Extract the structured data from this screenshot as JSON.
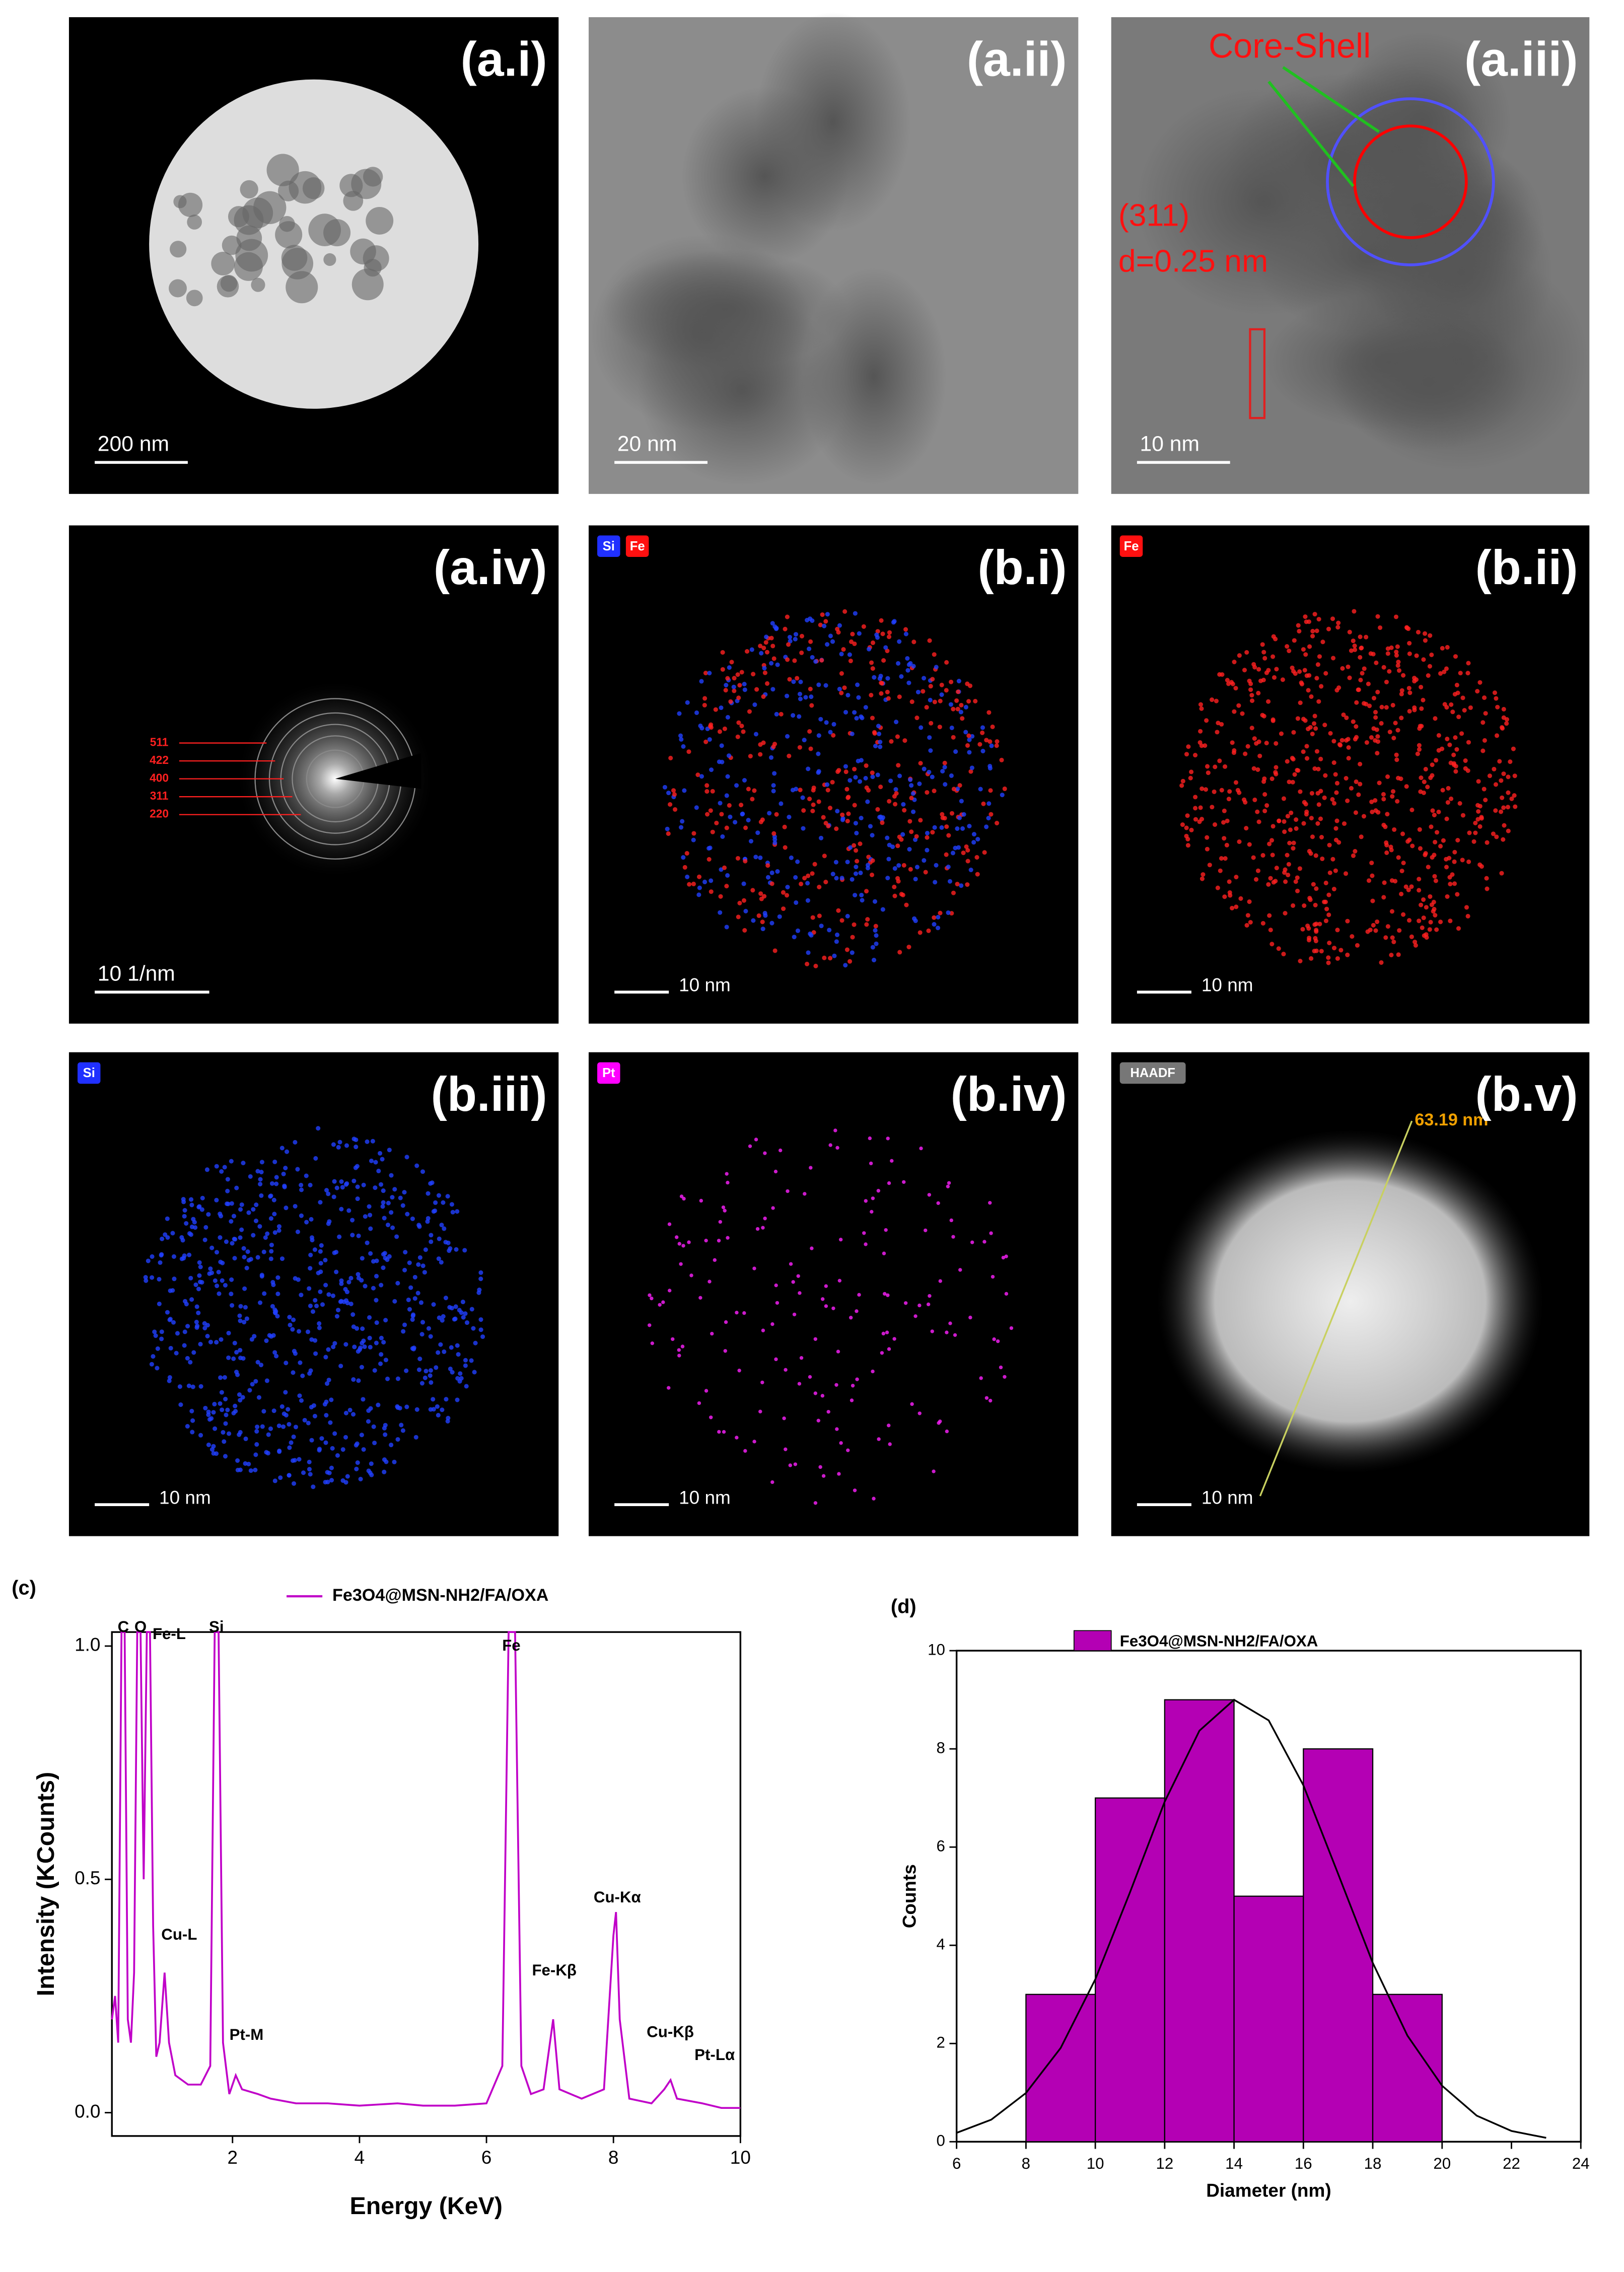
{
  "panels": [
    {
      "label": "(a.i)",
      "scale_bar": "200 nm"
    },
    {
      "label": "(a.ii)",
      "scale_bar": "20 nm"
    },
    {
      "label": "(a.iii)",
      "scale_bar": "10 nm",
      "annotations": [
        "Core-Shell",
        "(311)",
        "d=0.25 nm"
      ]
    },
    {
      "label": "(a.iv)",
      "scale_bar": "10 1/nm",
      "rings": [
        "511",
        "422",
        "400",
        "311",
        "220"
      ]
    },
    {
      "label": "(b.i)",
      "scale_bar": "10 nm",
      "tags": [
        "Si",
        "Fe"
      ]
    },
    {
      "label": "(b.ii)",
      "scale_bar": "10 nm",
      "tags": [
        "Fe"
      ]
    },
    {
      "label": "(b.iii)",
      "scale_bar": "10 nm",
      "tags": [
        "Si"
      ]
    },
    {
      "label": "(b.iv)",
      "scale_bar": "10 nm",
      "tags": [
        "Pt"
      ]
    },
    {
      "label": "(b.v)",
      "scale_bar": "10 nm",
      "tags": [
        "HAADF"
      ],
      "annotations": [
        "63.19 nm"
      ]
    }
  ],
  "chart_data": [
    {
      "type": "line",
      "panel_label": "(c)",
      "x_label": "Energy (KeV)",
      "y_label": "Intensity (KCounts)",
      "x": [
        0.1,
        0.15,
        0.2,
        0.25,
        0.3,
        0.35,
        0.4,
        0.45,
        0.5,
        0.55,
        0.6,
        0.65,
        0.7,
        0.75,
        0.8,
        0.85,
        0.93,
        1.0,
        1.1,
        1.3,
        1.5,
        1.65,
        1.72,
        1.78,
        1.85,
        1.95,
        2.05,
        2.15,
        2.4,
        2.6,
        3,
        3.5,
        4,
        4.6,
        5,
        5.5,
        6,
        6.25,
        6.35,
        6.45,
        6.55,
        6.7,
        6.9,
        7.05,
        7.15,
        7.5,
        7.85,
        8.0,
        8.04,
        8.1,
        8.25,
        8.6,
        8.8,
        8.9,
        9.0,
        9.4,
        9.7,
        10
      ],
      "series": [
        {
          "name": "Fe3O4@MSN-NH2/FA/OXA",
          "color": "#c000c8",
          "values": [
            0.2,
            0.25,
            0.15,
            1.03,
            1.03,
            0.2,
            0.15,
            0.3,
            1.03,
            1.03,
            0.5,
            1.03,
            1.03,
            0.4,
            0.12,
            0.15,
            0.3,
            0.15,
            0.08,
            0.06,
            0.06,
            0.1,
            1.03,
            1.03,
            0.15,
            0.04,
            0.08,
            0.05,
            0.04,
            0.03,
            0.02,
            0.02,
            0.015,
            0.02,
            0.015,
            0.015,
            0.02,
            0.1,
            1.03,
            1.03,
            0.1,
            0.04,
            0.05,
            0.2,
            0.05,
            0.03,
            0.05,
            0.38,
            0.43,
            0.2,
            0.03,
            0.02,
            0.05,
            0.07,
            0.03,
            0.02,
            0.01,
            0.01
          ]
        }
      ],
      "peak_labels": [
        "C",
        "O",
        "Fe-L",
        "Si",
        "Fe",
        "Cu-L",
        "Pt-M",
        "Fe-Kβ",
        "Cu-Kα",
        "Cu-Kβ",
        "Pt-Lα"
      ],
      "xlim": [
        0.1,
        10
      ],
      "xticks": [
        2,
        4,
        6,
        8,
        10
      ],
      "ylim": [
        -0.05,
        1.03
      ],
      "yticks": [
        {
          "value": 0,
          "label": "0.0"
        },
        {
          "value": 0.5,
          "label": "0.5"
        },
        {
          "value": 1,
          "label": "1.0"
        }
      ]
    },
    {
      "type": "histogram",
      "panel_label": "(d)",
      "x_label": "Diameter (nm)",
      "y_label": "Counts",
      "bins": [
        8,
        10,
        12,
        14,
        16,
        18,
        20
      ],
      "series": [
        {
          "name": "Fe3O4@MSN-NH2/FA/OXA",
          "color": "#b400b4",
          "values": [
            3,
            7,
            9,
            5,
            8,
            3
          ]
        }
      ],
      "fit": {
        "color": "#000000",
        "x": [
          6,
          7,
          8,
          9,
          10,
          11,
          12,
          13,
          14,
          15,
          16,
          17,
          18,
          19,
          20,
          21,
          22,
          23
        ],
        "values": [
          0.18,
          0.45,
          0.99,
          1.91,
          3.31,
          5.08,
          6.92,
          8.37,
          9.0,
          8.58,
          7.26,
          5.46,
          3.64,
          2.16,
          1.14,
          0.53,
          0.22,
          0.08
        ]
      },
      "xlim": [
        6,
        24
      ],
      "xticks": [
        6,
        8,
        10,
        12,
        14,
        16,
        18,
        20,
        22,
        24
      ],
      "ylim": [
        0,
        10
      ],
      "yticks": [
        0,
        2,
        4,
        6,
        8,
        10
      ]
    }
  ]
}
